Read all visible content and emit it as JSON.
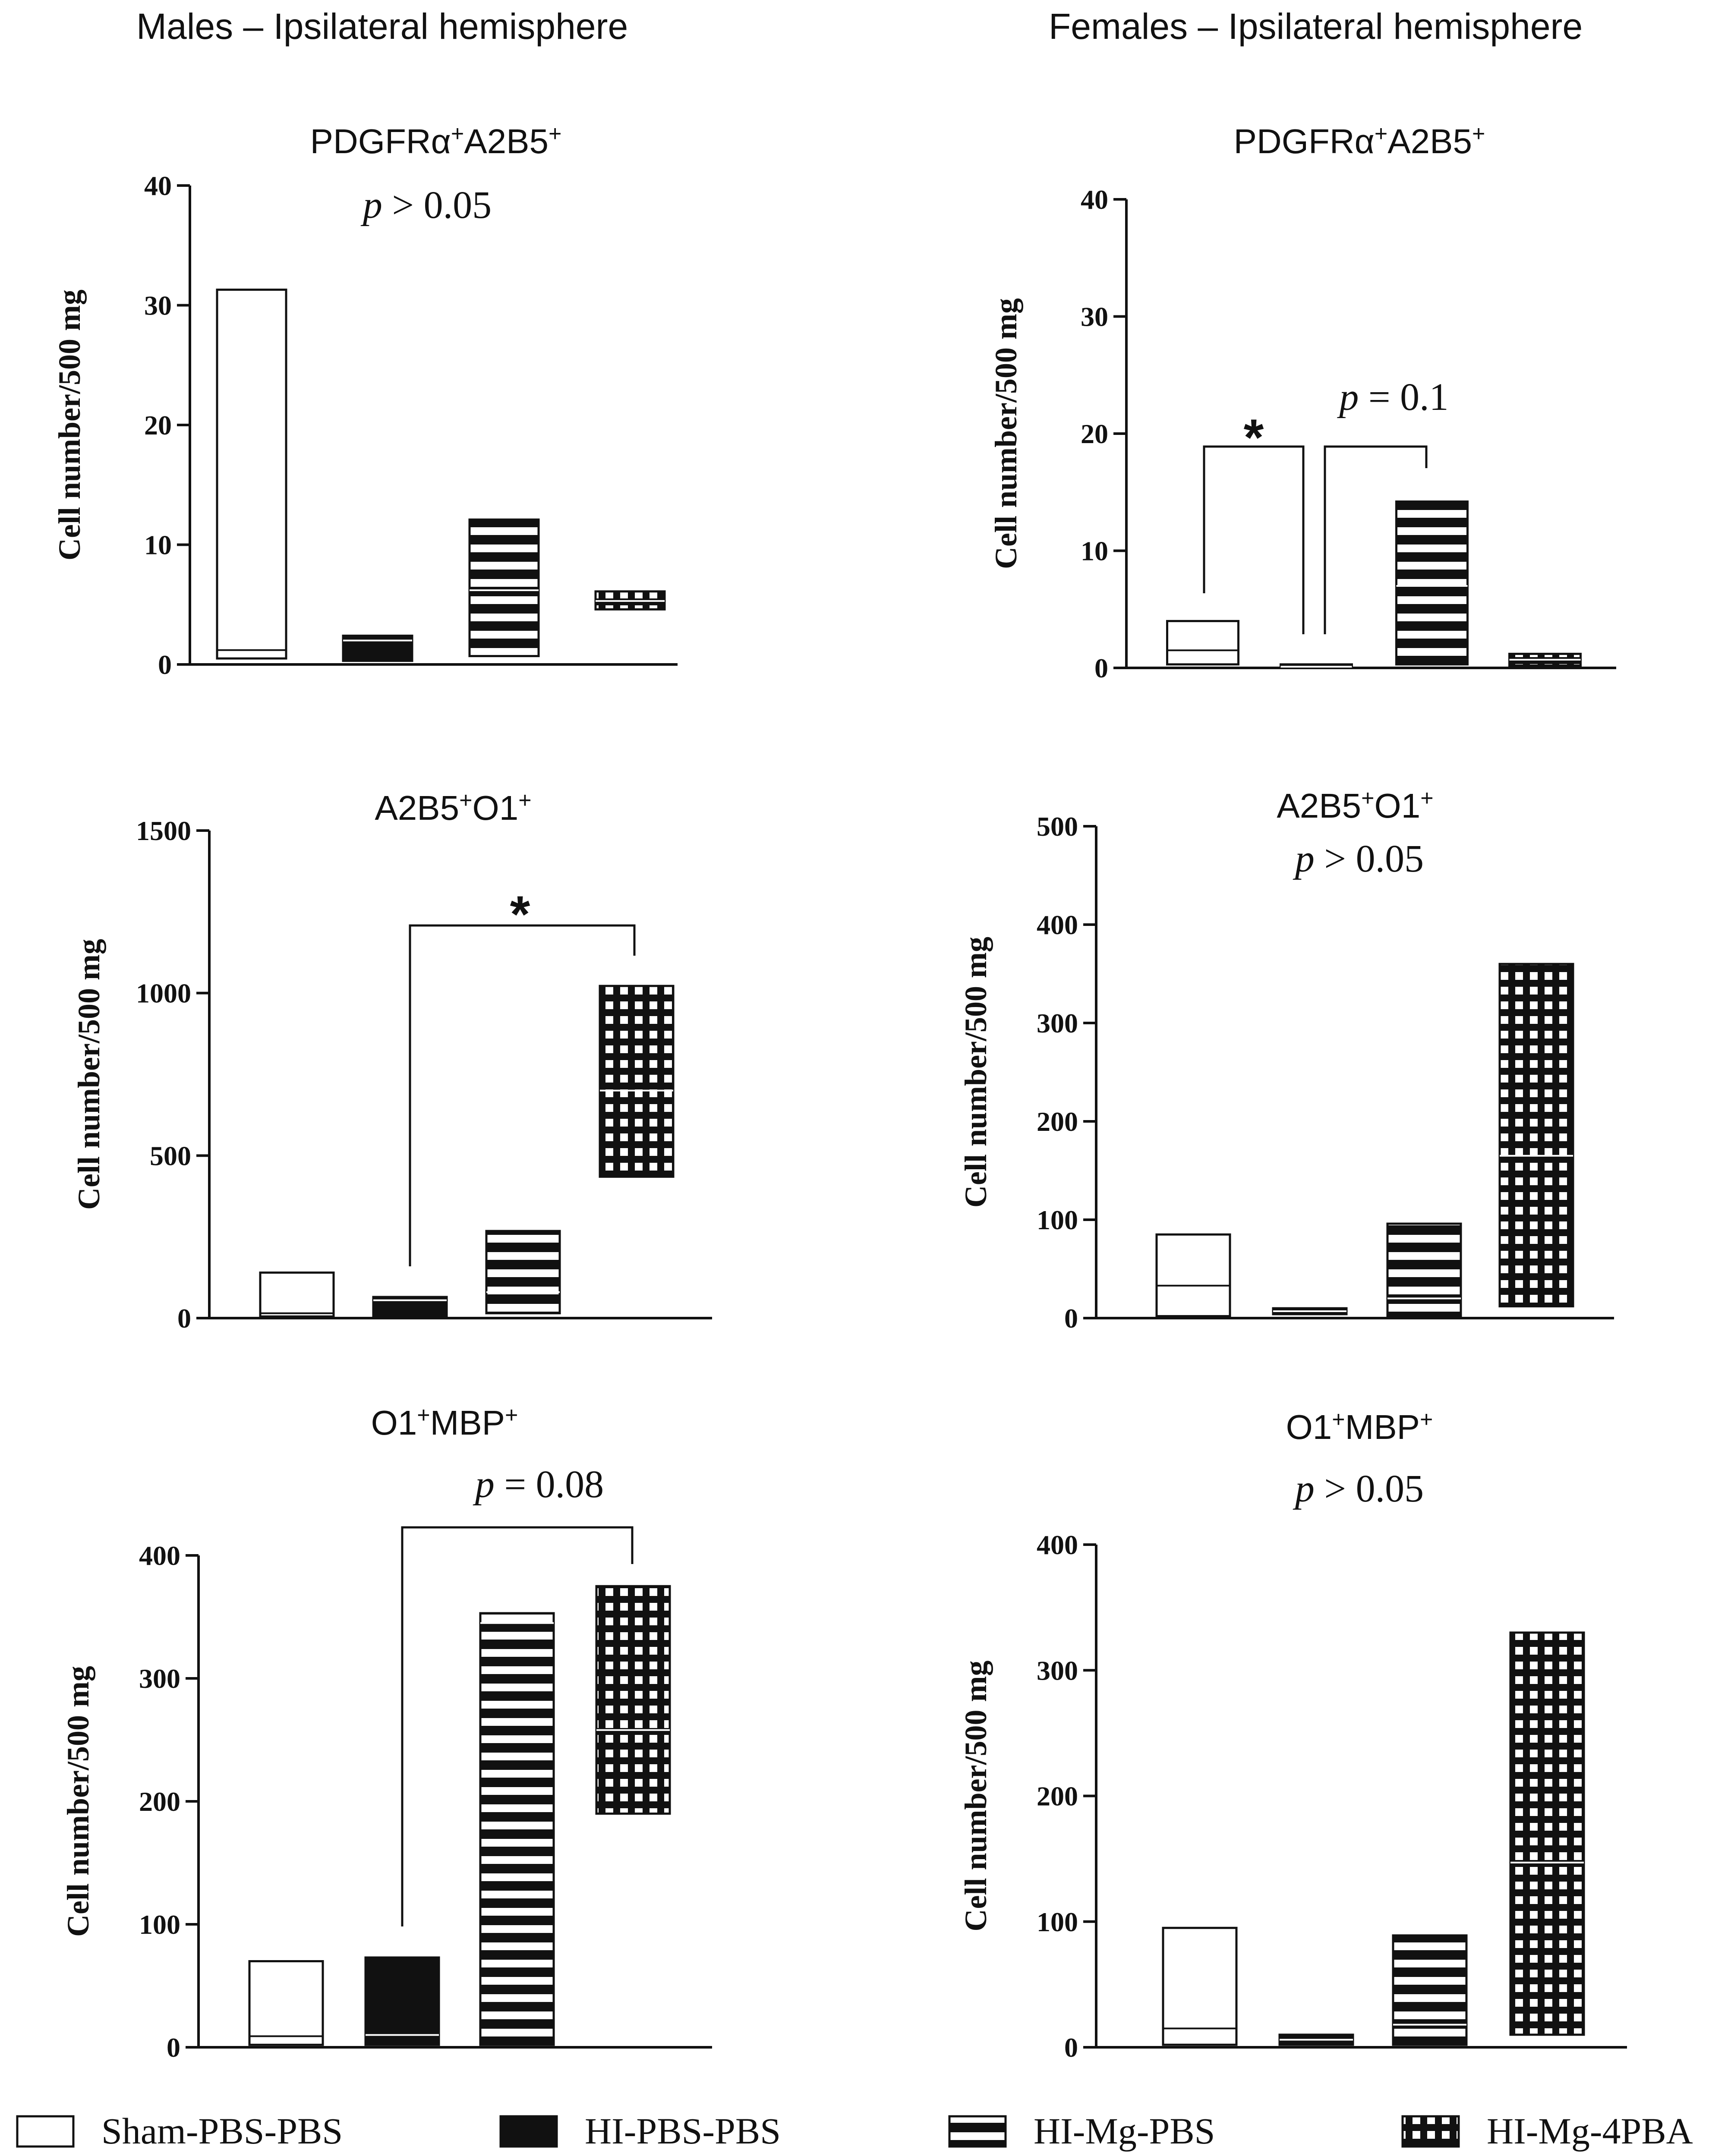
{
  "headers": {
    "males": "Males – Ipsilateral hemisphere",
    "females": "Females – Ipsilateral hemisphere"
  },
  "legend": [
    {
      "label": "Sham-PBS-PBS",
      "pattern": "open"
    },
    {
      "label": "HI-PBS-PBS",
      "pattern": "solid"
    },
    {
      "label": "HI-Mg-PBS",
      "pattern": "hstripe"
    },
    {
      "label": "HI-Mg-4PBA",
      "pattern": "grid"
    }
  ],
  "colors": {
    "ink": "#111111",
    "background": "#ffffff"
  },
  "chart_data": [
    {
      "panel": "males-pdgfra-a2b5",
      "type": "bar",
      "title": {
        "base": "PDGFRα",
        "sup1": "+",
        "mid": "A2B5",
        "sup2": "+"
      },
      "ylabel": "Cell number/500 mg",
      "ylim": [
        0,
        40
      ],
      "yticks": [
        "0",
        "10",
        "20",
        "30",
        "40"
      ],
      "categories": [
        "Sham-PBS-PBS",
        "HI-PBS-PBS",
        "HI-Mg-PBS",
        "HI-Mg-4PBA"
      ],
      "bars": [
        {
          "low": 0.5,
          "high": 31.3,
          "median": 1.2
        },
        {
          "low": 0.3,
          "high": 2.4,
          "median": 2.0
        },
        {
          "low": 0.7,
          "high": 12.1,
          "median": 6.2
        },
        {
          "low": 4.6,
          "high": 6.1,
          "median": 5.3
        }
      ],
      "annotations": [
        {
          "kind": "text",
          "italic": "p",
          "rest": " > 0.05"
        }
      ]
    },
    {
      "panel": "females-pdgfra-a2b5",
      "type": "bar",
      "title": {
        "base": "PDGFRα",
        "sup1": "+",
        "mid": "A2B5",
        "sup2": "+"
      },
      "ylabel": "Cell number/500 mg",
      "ylim": [
        0,
        40
      ],
      "yticks": [
        "0",
        "10",
        "20",
        "30",
        "40"
      ],
      "categories": [
        "Sham-PBS-PBS",
        "HI-PBS-PBS",
        "HI-Mg-PBS",
        "HI-Mg-4PBA"
      ],
      "bars": [
        {
          "low": 0.3,
          "high": 4.0,
          "median": 1.5
        },
        {
          "low": 0.0,
          "high": 0.3,
          "median": 0.1
        },
        {
          "low": 0.3,
          "high": 14.2,
          "median": 7.0
        },
        {
          "low": 0.2,
          "high": 1.2,
          "median": 0.7
        }
      ],
      "annotations": [
        {
          "kind": "bracket",
          "from": 0,
          "to": 1,
          "label": "*"
        },
        {
          "kind": "bracket",
          "from": 1,
          "to": 2,
          "italic": "p",
          "rest": " = 0.1"
        }
      ]
    },
    {
      "panel": "males-a2b5-o1",
      "type": "bar",
      "title": {
        "base": "A2B5",
        "sup1": "+",
        "mid": "O1",
        "sup2": "+"
      },
      "ylabel": "Cell number/500 mg",
      "ylim": [
        0,
        1500
      ],
      "yticks": [
        "0",
        "500",
        "1000",
        "1500"
      ],
      "categories": [
        "Sham-PBS-PBS",
        "HI-PBS-PBS",
        "HI-Mg-PBS",
        "HI-Mg-4PBA"
      ],
      "bars": [
        {
          "low": 5,
          "high": 140,
          "median": 15
        },
        {
          "low": 0,
          "high": 65,
          "median": 55
        },
        {
          "low": 15,
          "high": 268,
          "median": 80
        },
        {
          "low": 435,
          "high": 1022,
          "median": 700
        }
      ],
      "annotations": [
        {
          "kind": "bracket",
          "from": 1,
          "to": 3,
          "label": "*"
        }
      ]
    },
    {
      "panel": "females-a2b5-o1",
      "type": "bar",
      "title": {
        "base": "A2B5",
        "sup1": "+",
        "mid": "O1",
        "sup2": "+"
      },
      "ylabel": "Cell number/500 mg",
      "ylim": [
        0,
        500
      ],
      "yticks": [
        "0",
        "100",
        "200",
        "300",
        "400",
        "500"
      ],
      "categories": [
        "Sham-PBS-PBS",
        "HI-PBS-PBS",
        "HI-Mg-PBS",
        "HI-Mg-4PBA"
      ],
      "bars": [
        {
          "low": 2,
          "high": 85,
          "median": 33
        },
        {
          "low": 4,
          "high": 10,
          "median": 7
        },
        {
          "low": 2,
          "high": 96,
          "median": 20
        },
        {
          "low": 12,
          "high": 360,
          "median": 165
        }
      ],
      "annotations": [
        {
          "kind": "text",
          "italic": "p",
          "rest": " > 0.05"
        }
      ]
    },
    {
      "panel": "males-o1-mbp",
      "type": "bar",
      "title": {
        "base": "O1",
        "sup1": "+",
        "mid": "MBP",
        "sup2": "+"
      },
      "ylabel": "Cell number/500 mg",
      "ylim": [
        0,
        400
      ],
      "yticks": [
        "0",
        "100",
        "200",
        "300",
        "400"
      ],
      "categories": [
        "Sham-PBS-PBS",
        "HI-PBS-PBS",
        "HI-Mg-PBS",
        "HI-Mg-4PBA"
      ],
      "bars": [
        {
          "low": 2,
          "high": 70,
          "median": 9
        },
        {
          "low": 2,
          "high": 73,
          "median": 10
        },
        {
          "low": 2,
          "high": 353,
          "median": 345
        },
        {
          "low": 190,
          "high": 375,
          "median": 258
        }
      ],
      "annotations": [
        {
          "kind": "bracket",
          "from": 1,
          "to": 3,
          "italic": "p",
          "rest": " = 0.08"
        }
      ]
    },
    {
      "panel": "females-o1-mbp",
      "type": "bar",
      "title": {
        "base": "O1",
        "sup1": "+",
        "mid": "MBP",
        "sup2": "+"
      },
      "ylabel": "Cell number/500 mg",
      "ylim": [
        0,
        400
      ],
      "yticks": [
        "0",
        "100",
        "200",
        "300",
        "400"
      ],
      "categories": [
        "Sham-PBS-PBS",
        "HI-PBS-PBS",
        "HI-Mg-PBS",
        "HI-Mg-4PBA"
      ],
      "bars": [
        {
          "low": 2,
          "high": 95,
          "median": 15
        },
        {
          "low": 2,
          "high": 10,
          "median": 6
        },
        {
          "low": 2,
          "high": 89,
          "median": 18
        },
        {
          "low": 10,
          "high": 330,
          "median": 147
        }
      ],
      "annotations": [
        {
          "kind": "text",
          "italic": "p",
          "rest": " > 0.05"
        }
      ]
    }
  ]
}
